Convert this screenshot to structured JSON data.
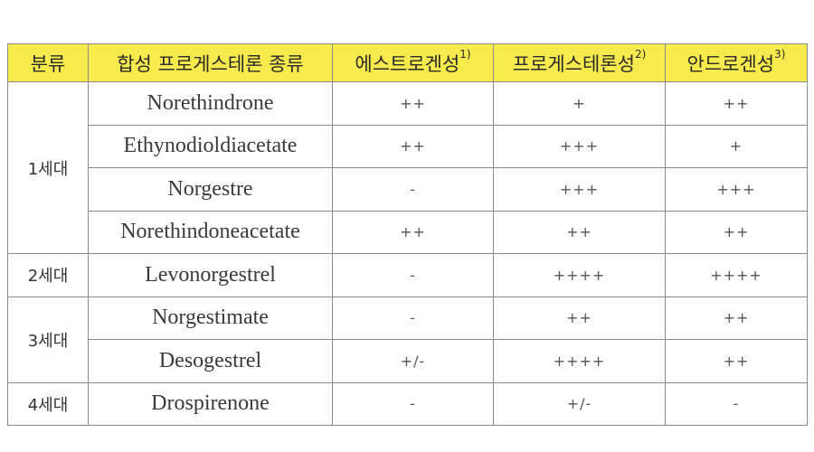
{
  "header": {
    "category": "분류",
    "drug": "합성 프로게스테론 종류",
    "estrogenic": "에스트로겐성",
    "estrogenic_note": "1)",
    "progestogenic": "프로게스테론성",
    "progestogenic_note": "2)",
    "androgenic": "안드로겐성",
    "androgenic_note": "3)"
  },
  "groups": [
    "1세대",
    "2세대",
    "3세대",
    "4세대"
  ],
  "rows": [
    {
      "name": "Norethindrone",
      "estrogenic": "++",
      "progestogenic": "+",
      "androgenic": "++"
    },
    {
      "name": "Ethynodioldiacetate",
      "estrogenic": "++",
      "progestogenic": "+++",
      "androgenic": "+"
    },
    {
      "name": "Norgestre",
      "estrogenic": "-",
      "progestogenic": "+++",
      "androgenic": "+++"
    },
    {
      "name": "Norethindoneacetate",
      "estrogenic": "++",
      "progestogenic": "++",
      "androgenic": "++"
    },
    {
      "name": "Levonorgestrel",
      "estrogenic": "-",
      "progestogenic": "++++",
      "androgenic": "++++"
    },
    {
      "name": "Norgestimate",
      "estrogenic": "-",
      "progestogenic": "++",
      "androgenic": "++"
    },
    {
      "name": "Desogestrel",
      "estrogenic": "+/-",
      "progestogenic": "++++",
      "androgenic": "++"
    },
    {
      "name": "Drospirenone",
      "estrogenic": "-",
      "progestogenic": "+/-",
      "androgenic": "-"
    }
  ],
  "colors": {
    "header_bg": "#f6ea4c",
    "border": "#8a8a8a"
  }
}
